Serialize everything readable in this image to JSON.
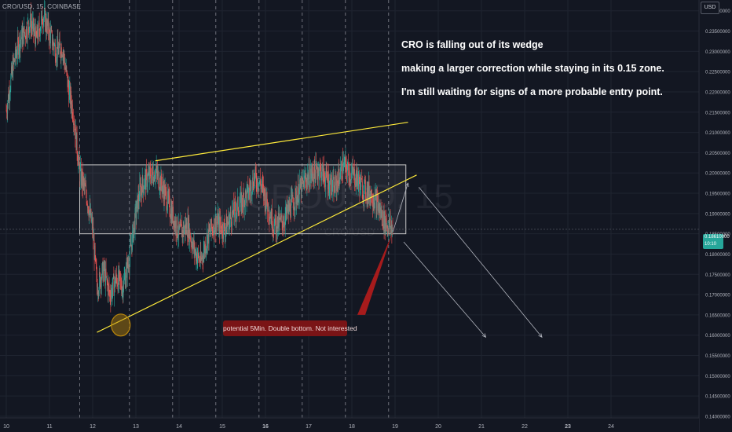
{
  "symbol_title": "CRO/USD, 15, COINBASE",
  "currency": "USD",
  "watermark_symbol": "CROUSD, 15",
  "watermark_sub": "CRO/USD",
  "commentary": [
    "CRO is falling out of its wedge",
    "making a larger correction while staying in its 0.15 zone.",
    "I'm still waiting for signs of a more probable entry point."
  ],
  "callout_text": "potential 5Min. Double bottom. Not interested",
  "price_tag": {
    "price": "0.18610000",
    "time": "10:10"
  },
  "colors": {
    "background": "#131722",
    "grid": "#1f2430",
    "up_candle": "#26a69a",
    "down_candle": "#ef5350",
    "wedge_lines": "#ffeb3b",
    "zone_fill": "rgba(255,255,255,0.06)",
    "zone_border": "#c8c8c8",
    "callout_bg": "#7a1416",
    "callout_arrow": "#b71c1c",
    "circle_marker": "#b8860b",
    "projection_arrows": "#b2b5be",
    "session_lines": "#9598a1"
  },
  "chart_data": {
    "type": "candlestick",
    "instrument": "CRO/USD",
    "interval": "15",
    "exchange": "COINBASE",
    "price_axis_ticks": [
      "0.24000000",
      "0.23500000",
      "0.23000000",
      "0.22500000",
      "0.22000000",
      "0.21500000",
      "0.21000000",
      "0.20500000",
      "0.20000000",
      "0.19500000",
      "0.19000000",
      "0.18500000",
      "0.18000000",
      "0.17500000",
      "0.17000000",
      "0.16500000",
      "0.16000000",
      "0.15500000",
      "0.15000000",
      "0.14500000",
      "0.14000000"
    ],
    "time_axis_ticks": [
      "10",
      "11",
      "12",
      "13",
      "14",
      "15",
      "16",
      "17",
      "18",
      "19",
      "20",
      "21",
      "22",
      "23",
      "24"
    ],
    "y_range": [
      0.1396,
      0.2415
    ],
    "x_range": [
      10.0,
      24.0
    ],
    "last_price": 0.1861,
    "last_time": "10:10",
    "price_path": [
      {
        "d": 10.0,
        "p": 0.2155
      },
      {
        "d": 10.15,
        "p": 0.226
      },
      {
        "d": 10.3,
        "p": 0.2325
      },
      {
        "d": 10.45,
        "p": 0.235
      },
      {
        "d": 10.55,
        "p": 0.2375
      },
      {
        "d": 10.7,
        "p": 0.233
      },
      {
        "d": 10.85,
        "p": 0.239
      },
      {
        "d": 11.0,
        "p": 0.2345
      },
      {
        "d": 11.15,
        "p": 0.23
      },
      {
        "d": 11.3,
        "p": 0.231
      },
      {
        "d": 11.45,
        "p": 0.22
      },
      {
        "d": 11.55,
        "p": 0.215
      },
      {
        "d": 11.7,
        "p": 0.2
      },
      {
        "d": 11.85,
        "p": 0.195
      },
      {
        "d": 12.0,
        "p": 0.186
      },
      {
        "d": 12.1,
        "p": 0.172
      },
      {
        "d": 12.25,
        "p": 0.176
      },
      {
        "d": 12.4,
        "p": 0.17
      },
      {
        "d": 12.55,
        "p": 0.174
      },
      {
        "d": 12.7,
        "p": 0.172
      },
      {
        "d": 12.85,
        "p": 0.179
      },
      {
        "d": 13.0,
        "p": 0.19
      },
      {
        "d": 13.1,
        "p": 0.196
      },
      {
        "d": 13.25,
        "p": 0.1985
      },
      {
        "d": 13.45,
        "p": 0.2005
      },
      {
        "d": 13.6,
        "p": 0.197
      },
      {
        "d": 13.8,
        "p": 0.191
      },
      {
        "d": 14.0,
        "p": 0.185
      },
      {
        "d": 14.2,
        "p": 0.187
      },
      {
        "d": 14.35,
        "p": 0.181
      },
      {
        "d": 14.5,
        "p": 0.178
      },
      {
        "d": 14.65,
        "p": 0.184
      },
      {
        "d": 14.85,
        "p": 0.188
      },
      {
        "d": 15.05,
        "p": 0.186
      },
      {
        "d": 15.25,
        "p": 0.19
      },
      {
        "d": 15.45,
        "p": 0.193
      },
      {
        "d": 15.6,
        "p": 0.195
      },
      {
        "d": 15.75,
        "p": 0.199
      },
      {
        "d": 15.9,
        "p": 0.197
      },
      {
        "d": 16.05,
        "p": 0.192
      },
      {
        "d": 16.2,
        "p": 0.187
      },
      {
        "d": 16.4,
        "p": 0.188
      },
      {
        "d": 16.55,
        "p": 0.191
      },
      {
        "d": 16.75,
        "p": 0.195
      },
      {
        "d": 16.9,
        "p": 0.198
      },
      {
        "d": 17.1,
        "p": 0.2
      },
      {
        "d": 17.25,
        "p": 0.201
      },
      {
        "d": 17.45,
        "p": 0.198
      },
      {
        "d": 17.6,
        "p": 0.196
      },
      {
        "d": 17.8,
        "p": 0.202
      },
      {
        "d": 17.95,
        "p": 0.2
      },
      {
        "d": 18.1,
        "p": 0.199
      },
      {
        "d": 18.25,
        "p": 0.196
      },
      {
        "d": 18.45,
        "p": 0.195
      },
      {
        "d": 18.6,
        "p": 0.192
      },
      {
        "d": 18.75,
        "p": 0.188
      },
      {
        "d": 18.85,
        "p": 0.187
      },
      {
        "d": 18.95,
        "p": 0.1861
      }
    ],
    "annotations": {
      "consolidation_zone": {
        "x": [
          11.7,
          19.25
        ],
        "y": [
          0.185,
          0.202
        ]
      },
      "wedge_upper_line": {
        "x": [
          13.45,
          19.3
        ],
        "y": [
          0.203,
          0.2125
        ]
      },
      "wedge_lower_line": {
        "x": [
          12.1,
          19.5
        ],
        "y": [
          0.1607,
          0.1995
        ]
      },
      "circle_marker": {
        "x": 12.65,
        "y": 0.1625
      },
      "callout_arrow": {
        "from": {
          "x": 18.2,
          "y": 0.165
        },
        "to": {
          "x": 18.95,
          "y": 0.1855
        }
      },
      "projection_up": {
        "from": {
          "x": 18.95,
          "y": 0.1855
        },
        "to": {
          "x": 19.3,
          "y": 0.1975
        }
      },
      "projection_1": {
        "from": {
          "x": 19.2,
          "y": 0.183
        },
        "to": {
          "x": 21.1,
          "y": 0.1595
        }
      },
      "projection_2": {
        "from": {
          "x": 19.55,
          "y": 0.1965
        },
        "to": {
          "x": 22.4,
          "y": 0.1595
        }
      },
      "session_lines": [
        11.7,
        12.85,
        13.85,
        14.85,
        15.85,
        16.85,
        17.85,
        18.85
      ],
      "crosshair_price": 0.1861
    }
  }
}
